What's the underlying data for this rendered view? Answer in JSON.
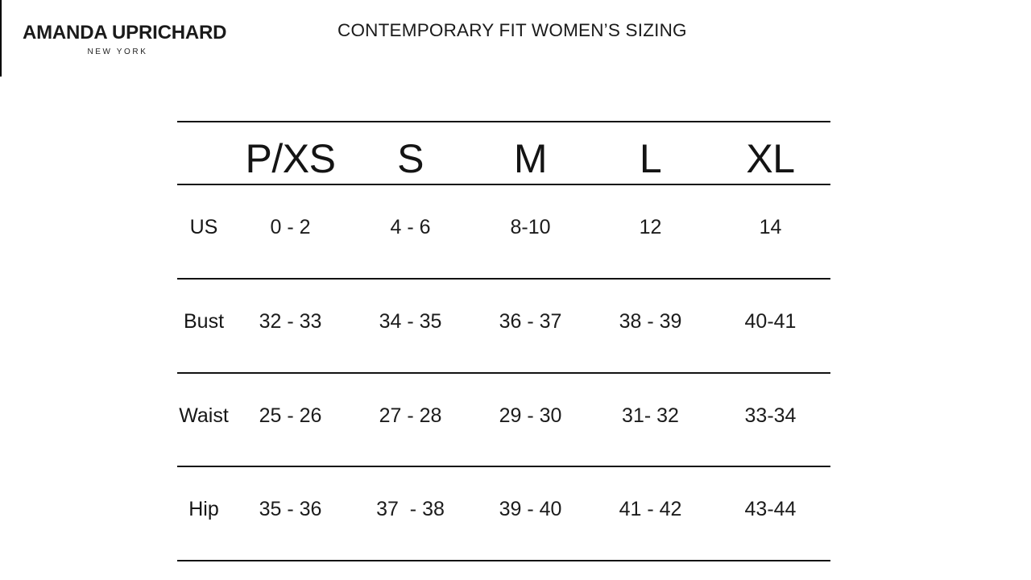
{
  "brand": {
    "name": "AMANDA UPRICHARD",
    "subtitle": "NEW YORK"
  },
  "page_title": "CONTEMPORARY FIT WOMEN’S SIZING",
  "size_chart": {
    "columns": [
      "P/XS",
      "S",
      "M",
      "L",
      "XL"
    ],
    "rows": [
      {
        "label": "US",
        "values": [
          "0 - 2",
          "4 - 6",
          "8-10",
          "12",
          "14"
        ]
      },
      {
        "label": "Bust",
        "values": [
          "32 - 33",
          "34 - 35",
          "36 - 37",
          "38 - 39",
          "40-41"
        ]
      },
      {
        "label": "Waist",
        "values": [
          "25 - 26",
          "27 - 28",
          "29 - 30",
          "31- 32",
          "33-34"
        ]
      },
      {
        "label": "Hip",
        "values": [
          "35 - 36",
          "37  - 38",
          "39 - 40",
          "41 - 42",
          "43-44"
        ]
      }
    ]
  },
  "colors": {
    "text": "#1c1c1c",
    "line": "#121212",
    "background": "#ffffff"
  }
}
